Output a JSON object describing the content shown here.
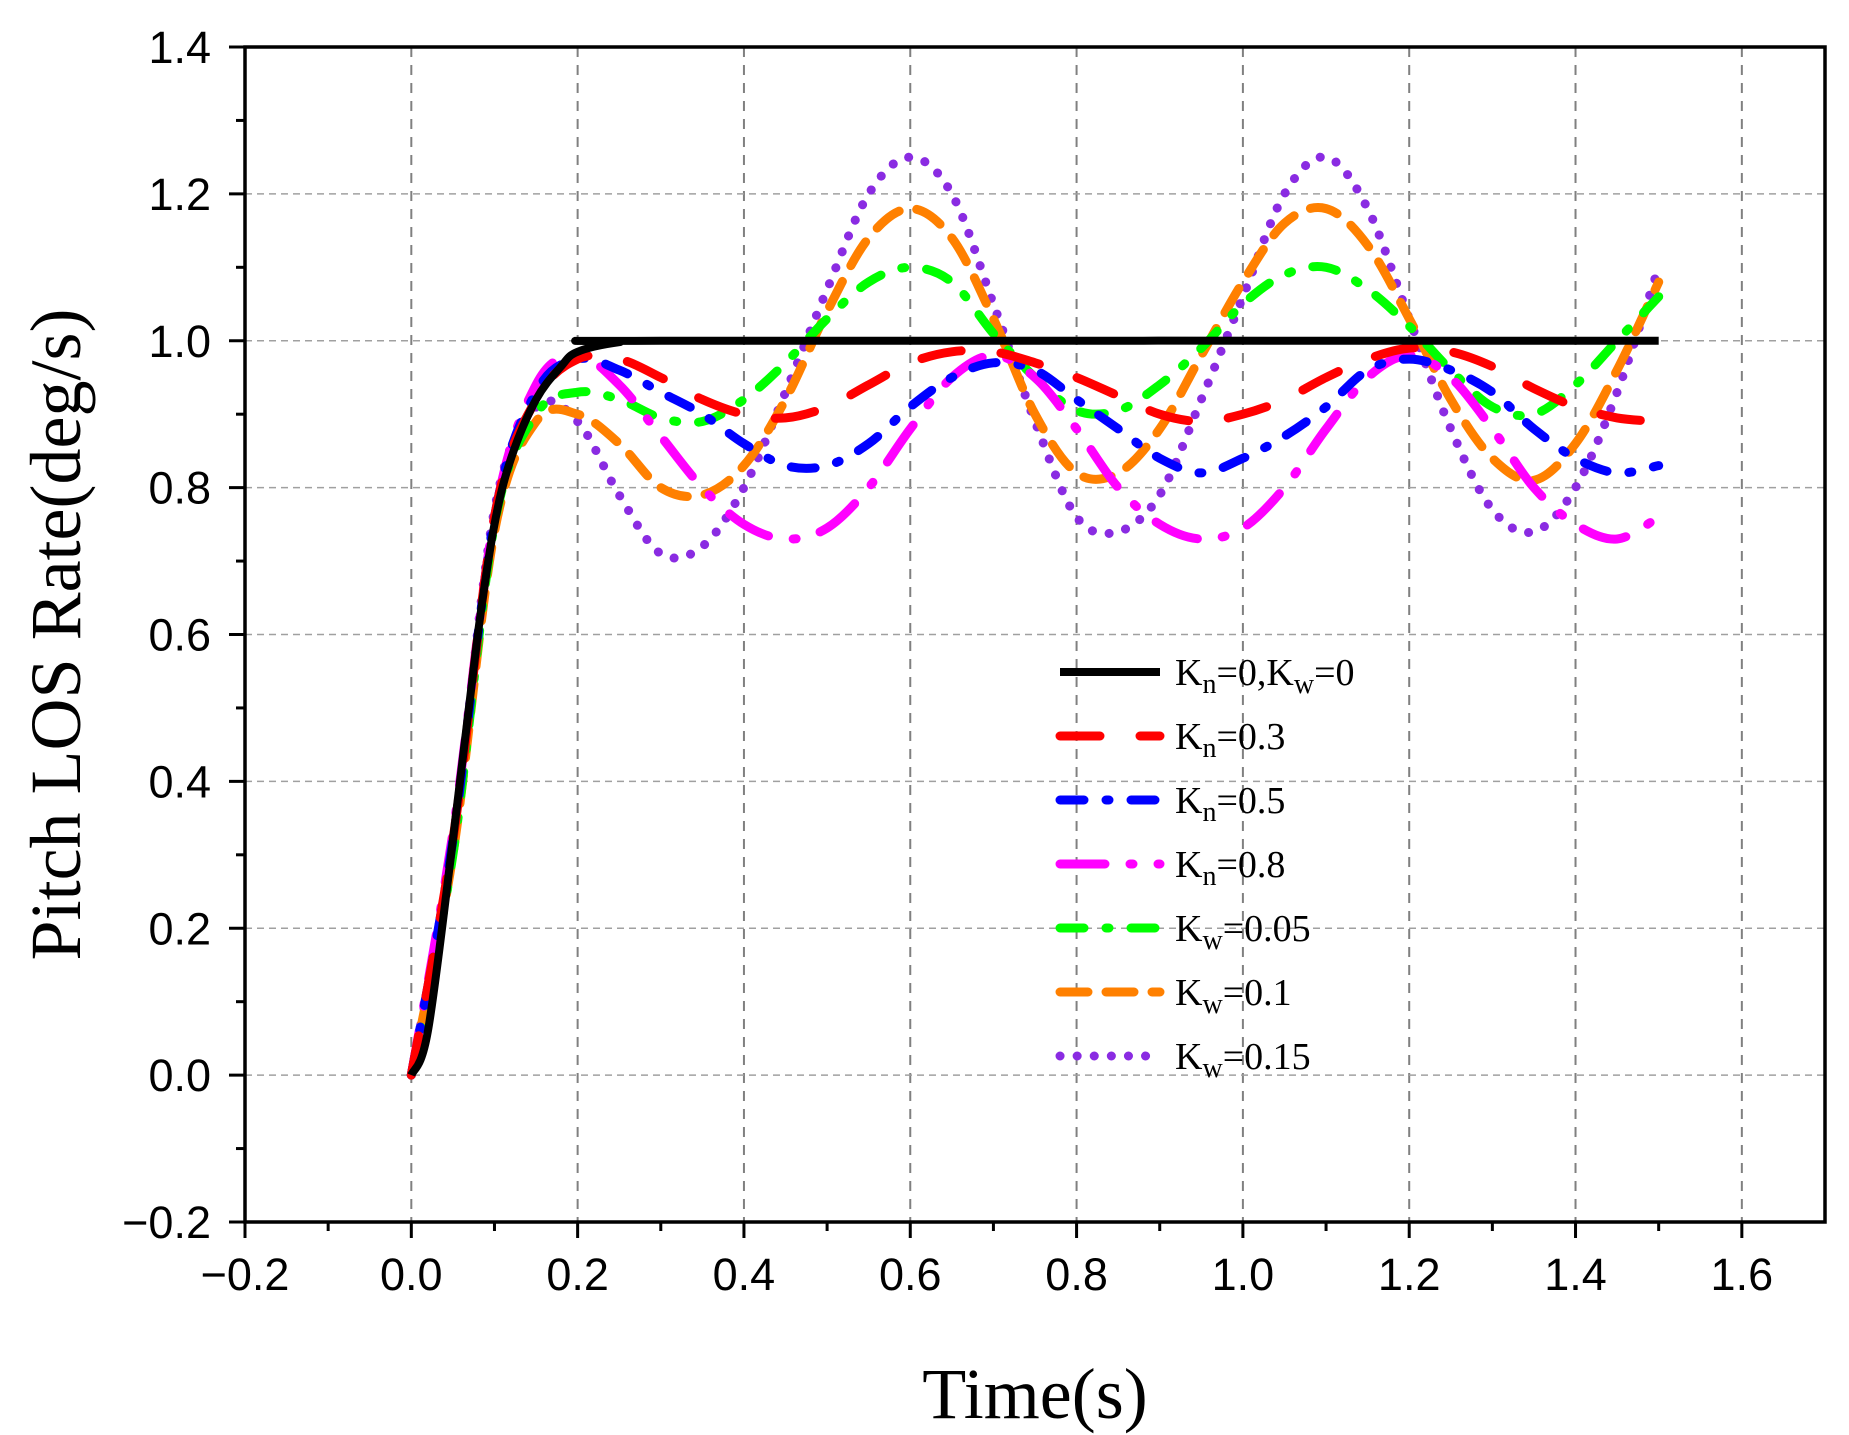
{
  "chart_data": {
    "type": "line",
    "title": "",
    "xlabel": "Time(s)",
    "ylabel": "Pitch LOS Rate(deg/s)",
    "xlim": [
      -0.2,
      1.7
    ],
    "ylim": [
      -0.2,
      1.4
    ],
    "xticks": [
      -0.2,
      0.0,
      0.2,
      0.4,
      0.6,
      0.8,
      1.0,
      1.2,
      1.4,
      1.6
    ],
    "yticks": [
      -0.2,
      0.0,
      0.2,
      0.4,
      0.6,
      0.8,
      1.0,
      1.2,
      1.4
    ],
    "xtick_labels": [
      "−0.2",
      "0.0",
      "0.2",
      "0.4",
      "0.6",
      "0.8",
      "1.0",
      "1.2",
      "1.4",
      "1.6"
    ],
    "ytick_labels": [
      "−0.2",
      "0.0",
      "0.2",
      "0.4",
      "0.6",
      "0.8",
      "1.0",
      "1.2",
      "1.4"
    ],
    "grid": true,
    "legend_position": "center-right",
    "x_range": [
      0.0,
      1.5
    ],
    "series": [
      {
        "name": "Kn=0,Kw=0",
        "sub": "n",
        "sub2": "w",
        "label_parts": [
          "K",
          "n",
          "=0,K",
          "w",
          "=0"
        ],
        "color": "#000000",
        "dash": "solid",
        "points": [
          [
            0.0,
            0.0
          ],
          [
            0.02,
            0.06
          ],
          [
            0.05,
            0.32
          ],
          [
            0.08,
            0.6
          ],
          [
            0.1,
            0.75
          ],
          [
            0.12,
            0.84
          ],
          [
            0.15,
            0.92
          ],
          [
            0.18,
            0.965
          ],
          [
            0.2,
            0.985
          ],
          [
            0.25,
            0.998
          ],
          [
            0.3,
            1.0
          ],
          [
            1.5,
            1.0
          ]
        ]
      },
      {
        "name": "Kn=0.3",
        "label_parts": [
          "K",
          "n",
          "=0.3"
        ],
        "color": "#ff0000",
        "dash": "longdash",
        "points": [
          [
            0.0,
            0.0
          ],
          [
            0.05,
            0.32
          ],
          [
            0.1,
            0.76
          ],
          [
            0.15,
            0.92
          ],
          [
            0.2,
            0.975
          ],
          [
            0.25,
            0.975
          ],
          [
            0.3,
            0.95
          ],
          [
            0.35,
            0.92
          ],
          [
            0.4,
            0.9
          ],
          [
            0.45,
            0.895
          ],
          [
            0.5,
            0.91
          ],
          [
            0.55,
            0.94
          ],
          [
            0.6,
            0.97
          ],
          [
            0.65,
            0.985
          ],
          [
            0.7,
            0.985
          ],
          [
            0.75,
            0.97
          ],
          [
            0.8,
            0.95
          ],
          [
            0.85,
            0.925
          ],
          [
            0.9,
            0.9
          ],
          [
            0.95,
            0.89
          ],
          [
            1.0,
            0.9
          ],
          [
            1.05,
            0.92
          ],
          [
            1.1,
            0.95
          ],
          [
            1.15,
            0.975
          ],
          [
            1.2,
            0.99
          ],
          [
            1.25,
            0.985
          ],
          [
            1.3,
            0.965
          ],
          [
            1.35,
            0.935
          ],
          [
            1.4,
            0.91
          ],
          [
            1.45,
            0.895
          ],
          [
            1.5,
            0.89
          ]
        ]
      },
      {
        "name": "Kn=0.5",
        "label_parts": [
          "K",
          "n",
          "=0.5"
        ],
        "color": "#0000ff",
        "dash": "dashdot",
        "points": [
          [
            0.0,
            0.0
          ],
          [
            0.05,
            0.32
          ],
          [
            0.1,
            0.76
          ],
          [
            0.15,
            0.93
          ],
          [
            0.2,
            0.975
          ],
          [
            0.25,
            0.96
          ],
          [
            0.3,
            0.93
          ],
          [
            0.35,
            0.9
          ],
          [
            0.4,
            0.86
          ],
          [
            0.45,
            0.83
          ],
          [
            0.5,
            0.83
          ],
          [
            0.55,
            0.86
          ],
          [
            0.6,
            0.91
          ],
          [
            0.65,
            0.95
          ],
          [
            0.7,
            0.97
          ],
          [
            0.75,
            0.96
          ],
          [
            0.8,
            0.92
          ],
          [
            0.85,
            0.88
          ],
          [
            0.9,
            0.84
          ],
          [
            0.95,
            0.82
          ],
          [
            1.0,
            0.84
          ],
          [
            1.05,
            0.87
          ],
          [
            1.1,
            0.91
          ],
          [
            1.15,
            0.96
          ],
          [
            1.2,
            0.975
          ],
          [
            1.25,
            0.96
          ],
          [
            1.3,
            0.93
          ],
          [
            1.35,
            0.88
          ],
          [
            1.4,
            0.84
          ],
          [
            1.45,
            0.82
          ],
          [
            1.5,
            0.83
          ]
        ]
      },
      {
        "name": "Kn=0.8",
        "label_parts": [
          "K",
          "n",
          "=0.8"
        ],
        "color": "#ff00ff",
        "dash": "dashdotlong",
        "points": [
          [
            0.0,
            0.0
          ],
          [
            0.05,
            0.33
          ],
          [
            0.1,
            0.76
          ],
          [
            0.15,
            0.94
          ],
          [
            0.2,
            0.98
          ],
          [
            0.25,
            0.94
          ],
          [
            0.3,
            0.87
          ],
          [
            0.35,
            0.8
          ],
          [
            0.4,
            0.75
          ],
          [
            0.45,
            0.73
          ],
          [
            0.5,
            0.745
          ],
          [
            0.55,
            0.8
          ],
          [
            0.6,
            0.88
          ],
          [
            0.65,
            0.95
          ],
          [
            0.7,
            0.98
          ],
          [
            0.75,
            0.95
          ],
          [
            0.8,
            0.88
          ],
          [
            0.85,
            0.8
          ],
          [
            0.9,
            0.75
          ],
          [
            0.95,
            0.73
          ],
          [
            1.0,
            0.745
          ],
          [
            1.05,
            0.8
          ],
          [
            1.1,
            0.88
          ],
          [
            1.15,
            0.95
          ],
          [
            1.2,
            0.98
          ],
          [
            1.25,
            0.95
          ],
          [
            1.3,
            0.88
          ],
          [
            1.35,
            0.8
          ],
          [
            1.4,
            0.75
          ],
          [
            1.45,
            0.73
          ],
          [
            1.5,
            0.76
          ]
        ]
      },
      {
        "name": "Kw=0.05",
        "label_parts": [
          "K",
          "w",
          "=0.05"
        ],
        "color": "#00ff00",
        "dash": "dashdot",
        "points": [
          [
            0.0,
            0.0
          ],
          [
            0.05,
            0.3
          ],
          [
            0.1,
            0.75
          ],
          [
            0.15,
            0.9
          ],
          [
            0.2,
            0.93
          ],
          [
            0.25,
            0.92
          ],
          [
            0.3,
            0.895
          ],
          [
            0.35,
            0.89
          ],
          [
            0.4,
            0.92
          ],
          [
            0.45,
            0.97
          ],
          [
            0.5,
            1.03
          ],
          [
            0.55,
            1.08
          ],
          [
            0.6,
            1.1
          ],
          [
            0.65,
            1.08
          ],
          [
            0.7,
            1.01
          ],
          [
            0.75,
            0.95
          ],
          [
            0.8,
            0.905
          ],
          [
            0.85,
            0.905
          ],
          [
            0.9,
            0.94
          ],
          [
            0.95,
            0.99
          ],
          [
            1.0,
            1.05
          ],
          [
            1.05,
            1.09
          ],
          [
            1.1,
            1.1
          ],
          [
            1.15,
            1.07
          ],
          [
            1.2,
            1.02
          ],
          [
            1.25,
            0.96
          ],
          [
            1.3,
            0.91
          ],
          [
            1.35,
            0.9
          ],
          [
            1.4,
            0.94
          ],
          [
            1.45,
            1.0
          ],
          [
            1.5,
            1.06
          ]
        ]
      },
      {
        "name": "Kw=0.1",
        "label_parts": [
          "K",
          "w",
          "=0.1"
        ],
        "color": "#ff8000",
        "dash": "dash",
        "points": [
          [
            0.0,
            0.0
          ],
          [
            0.05,
            0.3
          ],
          [
            0.1,
            0.74
          ],
          [
            0.15,
            0.89
          ],
          [
            0.2,
            0.9
          ],
          [
            0.25,
            0.86
          ],
          [
            0.3,
            0.8
          ],
          [
            0.35,
            0.79
          ],
          [
            0.4,
            0.83
          ],
          [
            0.45,
            0.92
          ],
          [
            0.5,
            1.04
          ],
          [
            0.55,
            1.14
          ],
          [
            0.6,
            1.18
          ],
          [
            0.65,
            1.14
          ],
          [
            0.7,
            1.03
          ],
          [
            0.75,
            0.9
          ],
          [
            0.8,
            0.82
          ],
          [
            0.85,
            0.82
          ],
          [
            0.9,
            0.88
          ],
          [
            0.95,
            0.98
          ],
          [
            1.0,
            1.08
          ],
          [
            1.05,
            1.16
          ],
          [
            1.1,
            1.18
          ],
          [
            1.15,
            1.13
          ],
          [
            1.2,
            1.03
          ],
          [
            1.25,
            0.92
          ],
          [
            1.3,
            0.84
          ],
          [
            1.35,
            0.81
          ],
          [
            1.4,
            0.86
          ],
          [
            1.45,
            0.96
          ],
          [
            1.5,
            1.08
          ]
        ]
      },
      {
        "name": "Kw=0.15",
        "label_parts": [
          "K",
          "w",
          "=0.15"
        ],
        "color": "#8a2be2",
        "dash": "dot",
        "points": [
          [
            0.0,
            0.0
          ],
          [
            0.05,
            0.32
          ],
          [
            0.1,
            0.77
          ],
          [
            0.15,
            0.91
          ],
          [
            0.2,
            0.89
          ],
          [
            0.25,
            0.79
          ],
          [
            0.3,
            0.71
          ],
          [
            0.35,
            0.72
          ],
          [
            0.4,
            0.8
          ],
          [
            0.45,
            0.93
          ],
          [
            0.5,
            1.07
          ],
          [
            0.55,
            1.2
          ],
          [
            0.6,
            1.25
          ],
          [
            0.65,
            1.2
          ],
          [
            0.7,
            1.05
          ],
          [
            0.75,
            0.89
          ],
          [
            0.8,
            0.76
          ],
          [
            0.85,
            0.74
          ],
          [
            0.9,
            0.79
          ],
          [
            0.95,
            0.92
          ],
          [
            1.0,
            1.06
          ],
          [
            1.05,
            1.2
          ],
          [
            1.1,
            1.25
          ],
          [
            1.15,
            1.18
          ],
          [
            1.2,
            1.03
          ],
          [
            1.25,
            0.88
          ],
          [
            1.3,
            0.77
          ],
          [
            1.35,
            0.74
          ],
          [
            1.4,
            0.8
          ],
          [
            1.45,
            0.93
          ],
          [
            1.5,
            1.1
          ]
        ]
      }
    ]
  }
}
